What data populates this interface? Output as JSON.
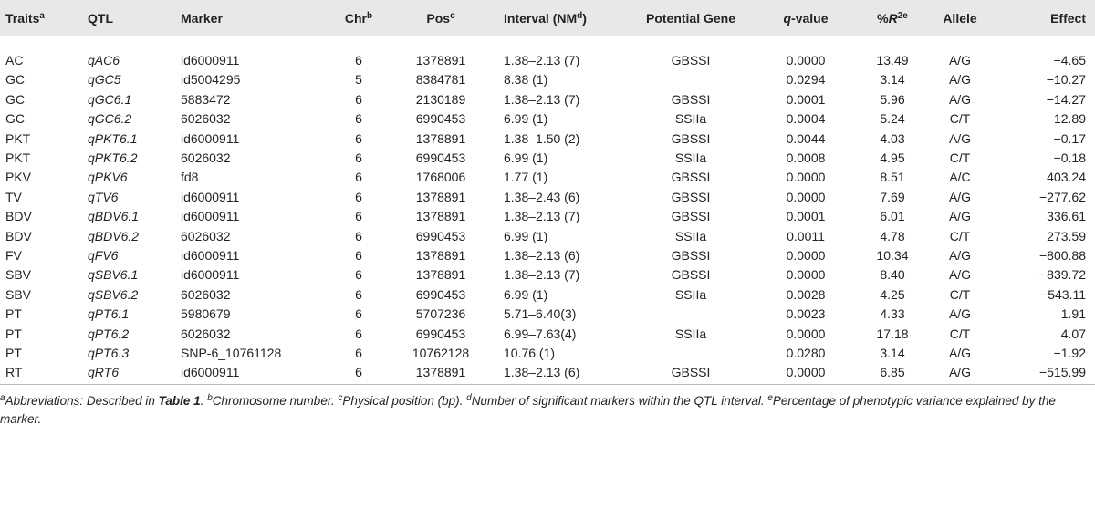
{
  "table": {
    "header": [
      [
        {
          "t": "Traits"
        },
        {
          "sup": "a"
        }
      ],
      [
        {
          "t": "QTL"
        }
      ],
      [
        {
          "t": "Marker"
        }
      ],
      [
        {
          "t": "Chr"
        },
        {
          "sup": "b"
        }
      ],
      [
        {
          "t": "Pos"
        },
        {
          "sup": "c"
        }
      ],
      [
        {
          "t": "Interval (NM"
        },
        {
          "sup": "d"
        },
        {
          "t": ")"
        }
      ],
      [
        {
          "t": "Potential Gene"
        }
      ],
      [
        {
          "i": "q"
        },
        {
          "t": "-value"
        }
      ],
      [
        {
          "t": "%"
        },
        {
          "i": "R"
        },
        {
          "sup": "2e"
        }
      ],
      [
        {
          "t": "Allele"
        }
      ],
      [
        {
          "t": "Effect"
        }
      ]
    ],
    "rows": [
      [
        "AC",
        "qAC6",
        "id6000911",
        "6",
        "1378891",
        "1.38–2.13 (7)",
        "GBSSI",
        "0.0000",
        "13.49",
        "A/G",
        "−4.65"
      ],
      [
        "GC",
        "qGC5",
        "id5004295",
        "5",
        "8384781",
        "8.38 (1)",
        null,
        "0.0294",
        "3.14",
        "A/G",
        "−10.27"
      ],
      [
        "GC",
        "qGC6.1",
        "5883472",
        "6",
        "2130189",
        "1.38–2.13 (7)",
        "GBSSI",
        "0.0001",
        "5.96",
        "A/G",
        "−14.27"
      ],
      [
        "GC",
        "qGC6.2",
        "6026032",
        "6",
        "6990453",
        "6.99 (1)",
        "SSIIa",
        "0.0004",
        "5.24",
        "C/T",
        "12.89"
      ],
      [
        "PKT",
        "qPKT6.1",
        "id6000911",
        "6",
        "1378891",
        "1.38–1.50 (2)",
        "GBSSI",
        "0.0044",
        "4.03",
        "A/G",
        "−0.17"
      ],
      [
        "PKT",
        "qPKT6.2",
        "6026032",
        "6",
        "6990453",
        "6.99 (1)",
        "SSIIa",
        "0.0008",
        "4.95",
        "C/T",
        "−0.18"
      ],
      [
        "PKV",
        "qPKV6",
        "fd8",
        "6",
        "1768006",
        "1.77 (1)",
        "GBSSI",
        "0.0000",
        "8.51",
        "A/C",
        "403.24"
      ],
      [
        "TV",
        "qTV6",
        "id6000911",
        "6",
        "1378891",
        "1.38–2.43 (6)",
        "GBSSI",
        "0.0000",
        "7.69",
        "A/G",
        "−277.62"
      ],
      [
        "BDV",
        "qBDV6.1",
        "id6000911",
        "6",
        "1378891",
        "1.38–2.13 (7)",
        "GBSSI",
        "0.0001",
        "6.01",
        "A/G",
        "336.61"
      ],
      [
        "BDV",
        "qBDV6.2",
        "6026032",
        "6",
        "6990453",
        "6.99 (1)",
        "SSIIa",
        "0.0011",
        "4.78",
        "C/T",
        "273.59"
      ],
      [
        "FV",
        "qFV6",
        "id6000911",
        "6",
        "1378891",
        "1.38–2.13 (6)",
        "GBSSI",
        "0.0000",
        "10.34",
        "A/G",
        "−800.88"
      ],
      [
        "SBV",
        "qSBV6.1",
        "id6000911",
        "6",
        "1378891",
        "1.38–2.13 (7)",
        "GBSSI",
        "0.0000",
        "8.40",
        "A/G",
        "−839.72"
      ],
      [
        "SBV",
        "qSBV6.2",
        "6026032",
        "6",
        "6990453",
        "6.99 (1)",
        "SSIIa",
        "0.0028",
        "4.25",
        "C/T",
        "−543.11"
      ],
      [
        "PT",
        "qPT6.1",
        "5980679",
        "6",
        "5707236",
        "5.71–6.40(3)",
        null,
        "0.0023",
        "4.33",
        "A/G",
        "1.91"
      ],
      [
        "PT",
        "qPT6.2",
        "6026032",
        "6",
        "6990453",
        "6.99–7.63(4)",
        "SSIIa",
        "0.0000",
        "17.18",
        "C/T",
        "4.07"
      ],
      [
        "PT",
        "qPT6.3",
        "SNP-6_10761128",
        "6",
        "10762128",
        "10.76 (1)",
        null,
        "0.0280",
        "3.14",
        "A/G",
        "−1.92"
      ],
      [
        "RT",
        "qRT6",
        "id6000911",
        "6",
        "1378891",
        "1.38–2.13 (6)",
        "GBSSI",
        "0.0000",
        "6.85",
        "A/G",
        "−515.99"
      ]
    ],
    "footnote": [
      {
        "sup": "a"
      },
      {
        "t": "Abbreviations: Described in "
      },
      {
        "b": "Table 1"
      },
      {
        "t": ". "
      },
      {
        "sup": "b"
      },
      {
        "t": "Chromosome number. "
      },
      {
        "sup": "c"
      },
      {
        "t": "Physical position (bp). "
      },
      {
        "sup": "d"
      },
      {
        "t": "Number of significant markers within the QTL interval. "
      },
      {
        "sup": "e"
      },
      {
        "t": "Percentage of phenotypic variance explained by the marker."
      }
    ]
  }
}
